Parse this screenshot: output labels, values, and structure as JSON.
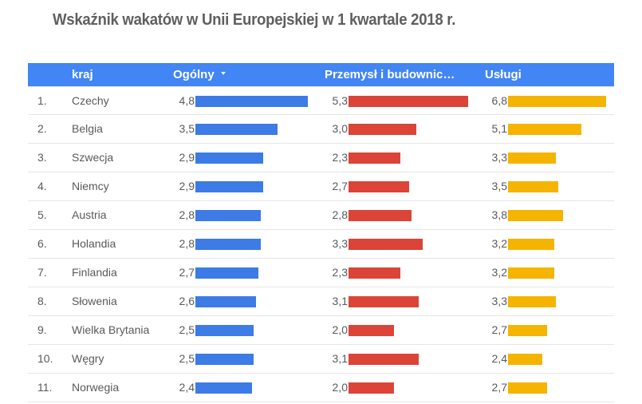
{
  "title": "Wskaźnik wakatów w Unii Europejskiej w 1 kwartale 2018 r.",
  "header": {
    "rank": "",
    "country": "kraj",
    "overall": "Ogólny",
    "industry": "Przemysł i budownic…",
    "services": "Usługi",
    "sort_icon": "sort-descending-icon"
  },
  "colors": {
    "header_bg": "#4285f4",
    "overall_bar": "#3d7be6",
    "industry_bar": "#db4437",
    "services_bar": "#f4b400"
  },
  "rows": [
    {
      "rank": "1.",
      "country": "Czechy",
      "overall": "4,8",
      "industry": "5,3",
      "services": "6,8"
    },
    {
      "rank": "2.",
      "country": "Belgia",
      "overall": "3,5",
      "industry": "3,0",
      "services": "5,1"
    },
    {
      "rank": "3.",
      "country": "Szwecja",
      "overall": "2,9",
      "industry": "2,3",
      "services": "3,3"
    },
    {
      "rank": "4.",
      "country": "Niemcy",
      "overall": "2,9",
      "industry": "2,7",
      "services": "3,5"
    },
    {
      "rank": "5.",
      "country": "Austria",
      "overall": "2,8",
      "industry": "2,8",
      "services": "3,8"
    },
    {
      "rank": "6.",
      "country": "Holandia",
      "overall": "2,8",
      "industry": "3,3",
      "services": "3,2"
    },
    {
      "rank": "7.",
      "country": "Finlandia",
      "overall": "2,7",
      "industry": "2,3",
      "services": "3,2"
    },
    {
      "rank": "8.",
      "country": "Słowenia",
      "overall": "2,6",
      "industry": "3,1",
      "services": "3,3"
    },
    {
      "rank": "9.",
      "country": "Wielka Brytania",
      "overall": "2,5",
      "industry": "2,0",
      "services": "2,7"
    },
    {
      "rank": "10.",
      "country": "Węgry",
      "overall": "2,5",
      "industry": "3,1",
      "services": "2,4"
    },
    {
      "rank": "11.",
      "country": "Norwegia",
      "overall": "2,4",
      "industry": "2,0",
      "services": "2,7"
    }
  ],
  "chart_data": {
    "type": "table",
    "title": "Wskaźnik wakatów w Unii Europejskiej w 1 kwartale 2018 r.",
    "columns": [
      "kraj",
      "Ogólny",
      "Przemysł i budownictwo",
      "Usługi"
    ],
    "sorted_by": "Ogólny",
    "sort_order": "descending",
    "categories": [
      "Czechy",
      "Belgia",
      "Szwecja",
      "Niemcy",
      "Austria",
      "Holandia",
      "Finlandia",
      "Słowenia",
      "Wielka Brytania",
      "Węgry",
      "Norwegia"
    ],
    "series": [
      {
        "name": "Ogólny",
        "color": "#3d7be6",
        "values": [
          4.8,
          3.5,
          2.9,
          2.9,
          2.8,
          2.8,
          2.7,
          2.6,
          2.5,
          2.5,
          2.4
        ]
      },
      {
        "name": "Przemysł i budownictwo",
        "color": "#db4437",
        "values": [
          5.3,
          3.0,
          2.3,
          2.7,
          2.8,
          3.3,
          2.3,
          3.1,
          2.0,
          3.1,
          2.0
        ]
      },
      {
        "name": "Usługi",
        "color": "#f4b400",
        "values": [
          6.8,
          5.1,
          3.3,
          3.5,
          3.8,
          3.2,
          3.2,
          3.3,
          2.7,
          2.4,
          2.7
        ]
      }
    ]
  }
}
